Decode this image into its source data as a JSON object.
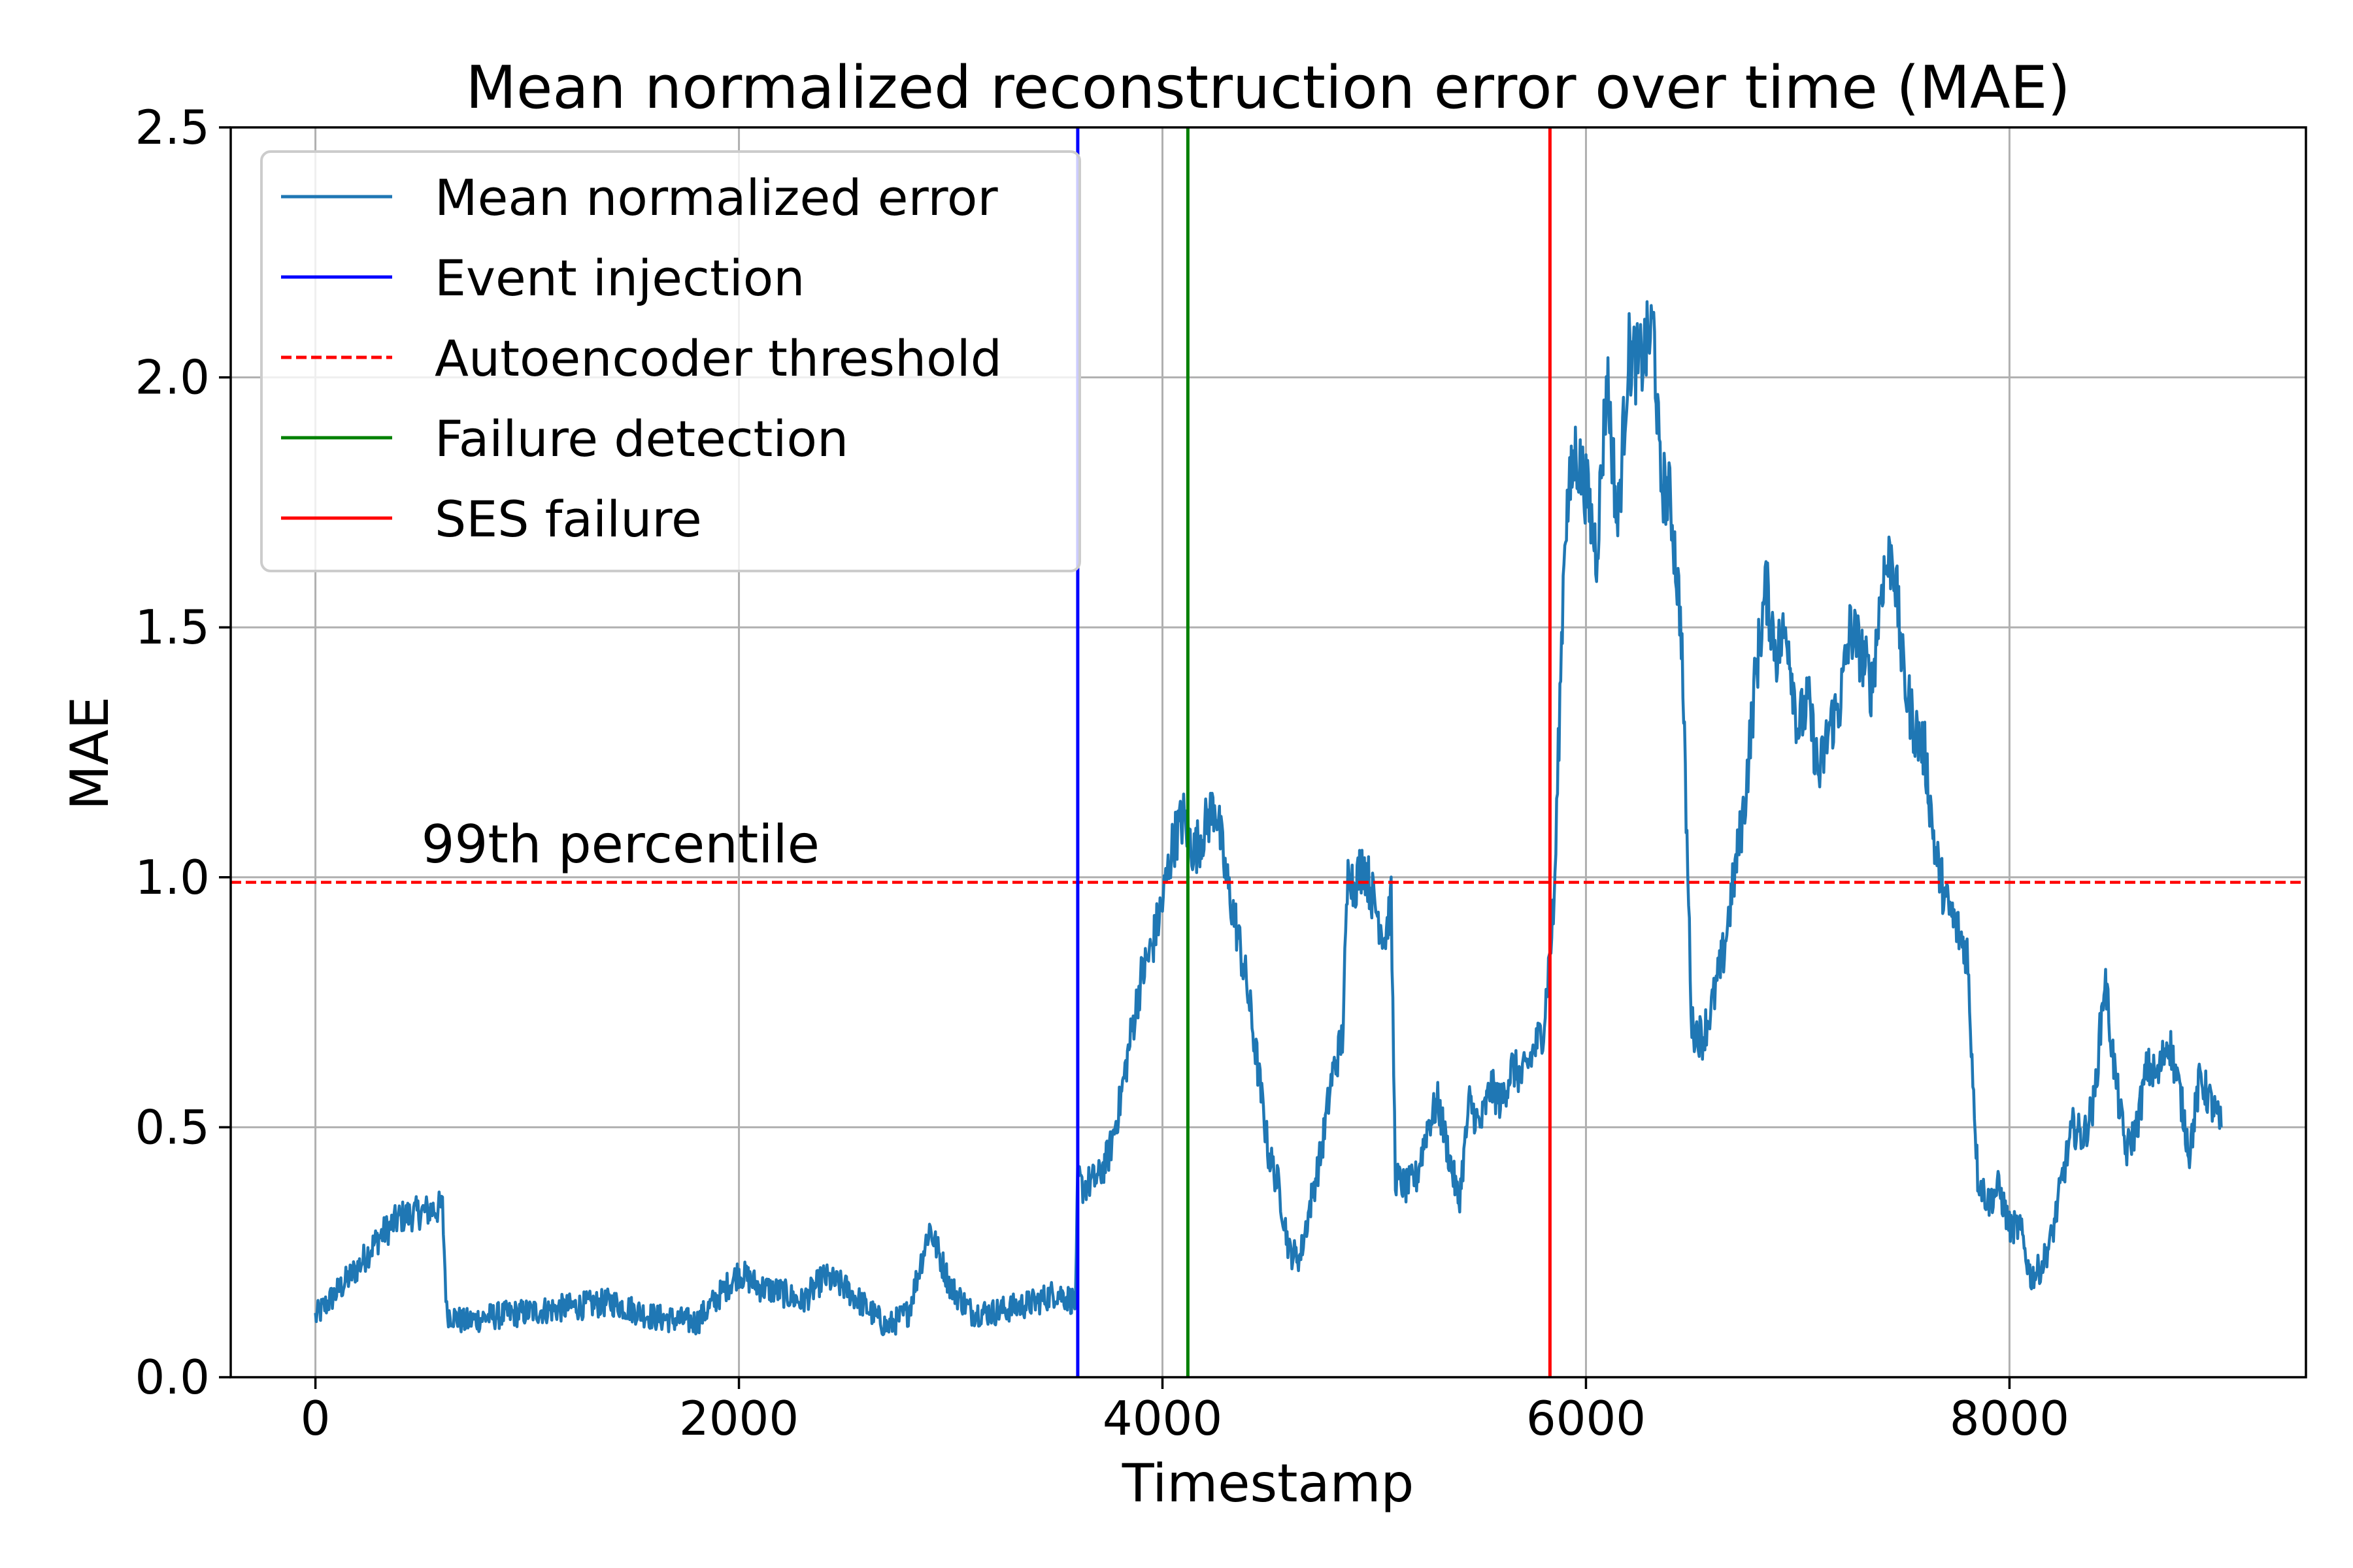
{
  "chart_data": {
    "type": "line",
    "title": "Mean normalized reconstruction error over time (MAE)",
    "xlabel": "Timestamp",
    "ylabel": "MAE",
    "xlim": [
      -400,
      9400
    ],
    "ylim": [
      0,
      2.5
    ],
    "xticks": [
      0,
      2000,
      4000,
      6000,
      8000
    ],
    "yticks": [
      0.0,
      0.5,
      1.0,
      1.5,
      2.0,
      2.5
    ],
    "xtick_labels": [
      "0",
      "2000",
      "4000",
      "6000",
      "8000"
    ],
    "ytick_labels": [
      "0.0",
      "0.5",
      "1.0",
      "1.5",
      "2.0",
      "2.5"
    ],
    "grid": true,
    "legend_position": "upper-left",
    "series": [
      {
        "name": "Mean normalized error",
        "color": "#1f77b4",
        "x": [
          0,
          100,
          200,
          300,
          400,
          500,
          600,
          620,
          700,
          800,
          1000,
          1200,
          1400,
          1600,
          1800,
          1900,
          2000,
          2100,
          2200,
          2300,
          2400,
          2500,
          2600,
          2700,
          2800,
          2900,
          3000,
          3100,
          3200,
          3300,
          3400,
          3500,
          3590,
          3600,
          3620,
          3700,
          3750,
          3800,
          3850,
          3900,
          3950,
          4000,
          4050,
          4100,
          4150,
          4200,
          4250,
          4300,
          4350,
          4400,
          4450,
          4500,
          4550,
          4600,
          4650,
          4700,
          4750,
          4800,
          4850,
          4880,
          4900,
          4950,
          5000,
          5050,
          5080,
          5100,
          5150,
          5200,
          5250,
          5300,
          5350,
          5400,
          5450,
          5500,
          5550,
          5600,
          5650,
          5700,
          5750,
          5800,
          5850,
          5900,
          5950,
          6000,
          6050,
          6100,
          6150,
          6200,
          6250,
          6300,
          6320,
          6350,
          6400,
          6450,
          6500,
          6550,
          6600,
          6650,
          6700,
          6750,
          6800,
          6850,
          6900,
          6950,
          7000,
          7050,
          7100,
          7150,
          7200,
          7250,
          7300,
          7350,
          7400,
          7450,
          7500,
          7550,
          7600,
          7650,
          7700,
          7750,
          7800,
          7850,
          7900,
          7950,
          8000,
          8050,
          8100,
          8150,
          8200,
          8250,
          8300,
          8350,
          8400,
          8450,
          8500,
          8550,
          8600,
          8650,
          8700,
          8750,
          8800,
          8850,
          8900,
          8950,
          9000
        ],
        "y": [
          0.12,
          0.17,
          0.22,
          0.28,
          0.32,
          0.33,
          0.34,
          0.13,
          0.11,
          0.12,
          0.13,
          0.14,
          0.15,
          0.12,
          0.11,
          0.16,
          0.21,
          0.18,
          0.17,
          0.15,
          0.2,
          0.18,
          0.14,
          0.1,
          0.13,
          0.3,
          0.18,
          0.13,
          0.13,
          0.14,
          0.15,
          0.17,
          0.15,
          0.4,
          0.38,
          0.4,
          0.45,
          0.55,
          0.68,
          0.8,
          0.86,
          0.95,
          1.07,
          1.12,
          1.05,
          1.1,
          1.15,
          1.0,
          0.9,
          0.78,
          0.62,
          0.45,
          0.38,
          0.25,
          0.24,
          0.35,
          0.45,
          0.6,
          0.68,
          1.05,
          0.98,
          1.03,
          0.95,
          0.88,
          0.95,
          0.4,
          0.38,
          0.4,
          0.5,
          0.55,
          0.45,
          0.35,
          0.55,
          0.5,
          0.58,
          0.55,
          0.62,
          0.6,
          0.65,
          0.7,
          0.95,
          1.7,
          1.85,
          1.78,
          1.65,
          2.0,
          1.7,
          2.05,
          2.02,
          2.08,
          2.1,
          1.8,
          1.75,
          1.5,
          0.7,
          0.68,
          0.75,
          0.85,
          1.0,
          1.15,
          1.4,
          1.58,
          1.45,
          1.5,
          1.3,
          1.35,
          1.2,
          1.3,
          1.35,
          1.5,
          1.45,
          1.38,
          1.6,
          1.65,
          1.4,
          1.3,
          1.25,
          1.05,
          0.95,
          0.9,
          0.85,
          0.4,
          0.35,
          0.38,
          0.3,
          0.3,
          0.2,
          0.22,
          0.28,
          0.4,
          0.5,
          0.48,
          0.55,
          0.8,
          0.6,
          0.45,
          0.5,
          0.62,
          0.6,
          0.68,
          0.58,
          0.45,
          0.6,
          0.55,
          0.5
        ],
        "noise_amplitude": 0.06
      }
    ],
    "threshold_line": {
      "name": "Autoencoder threshold",
      "y": 0.99,
      "color": "#ff0000",
      "style": "dashed"
    },
    "vertical_lines": [
      {
        "name": "Event injection",
        "x": 3600,
        "color": "#0000ff"
      },
      {
        "name": "Failure detection",
        "x": 4120,
        "color": "#008000"
      },
      {
        "name": "SES failure",
        "x": 5830,
        "color": "#ff0000"
      }
    ],
    "legend": [
      {
        "label": "Mean normalized error",
        "color": "#1f77b4",
        "style": "solid"
      },
      {
        "label": "Event injection",
        "color": "#0000ff",
        "style": "solid"
      },
      {
        "label": "Autoencoder threshold",
        "color": "#ff0000",
        "style": "dashed"
      },
      {
        "label": "Failure detection",
        "color": "#008000",
        "style": "solid"
      },
      {
        "label": "SES failure",
        "color": "#ff0000",
        "style": "solid"
      }
    ],
    "annotations": [
      {
        "text": "99th percentile",
        "x": 500,
        "y": 1.03,
        "color": "#ff0000"
      }
    ]
  }
}
